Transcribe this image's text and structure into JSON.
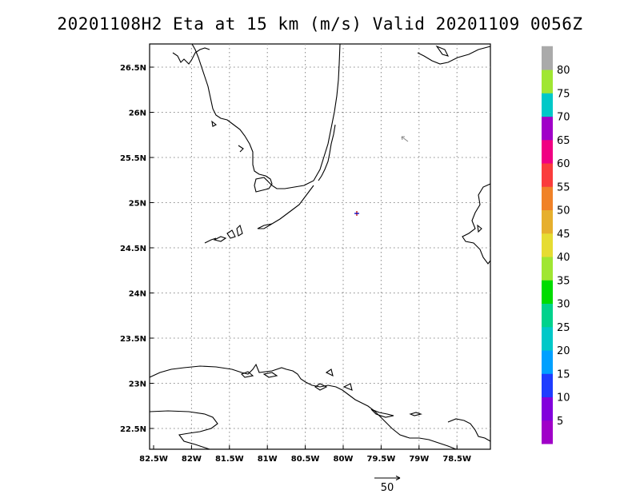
{
  "title": "20201108H2 Eta at 15 km (m/s) Valid 20201109 0056Z",
  "map": {
    "lon_ticks": [
      "82.5W",
      "82W",
      "81.5W",
      "81W",
      "80.5W",
      "80W",
      "79.5W",
      "79W",
      "78.5W"
    ],
    "lat_ticks": [
      "26.5N",
      "26N",
      "25.5N",
      "25N",
      "24.5N",
      "24N",
      "23.5N",
      "23N",
      "22.5N"
    ],
    "grid_lines": "dotted"
  },
  "colorbar": {
    "labels": [
      "5",
      "10",
      "15",
      "20",
      "25",
      "30",
      "35",
      "40",
      "45",
      "50",
      "55",
      "60",
      "65",
      "70",
      "75",
      "80"
    ],
    "colors": [
      "#a000c8",
      "#8200dc",
      "#1e3cff",
      "#00a0ff",
      "#00c8c8",
      "#00d28c",
      "#00dc00",
      "#a0e632",
      "#e6dc32",
      "#e6af2d",
      "#f08228",
      "#fa3c3c",
      "#f00082",
      "#a000c8",
      "#00c8c8",
      "#a0e632",
      "#aaaaaa"
    ]
  },
  "reference_vector": {
    "label": "50"
  },
  "icons": {
    "storm_center": "storm-center-marker",
    "wind_vector": "wind-vector-arrow"
  }
}
